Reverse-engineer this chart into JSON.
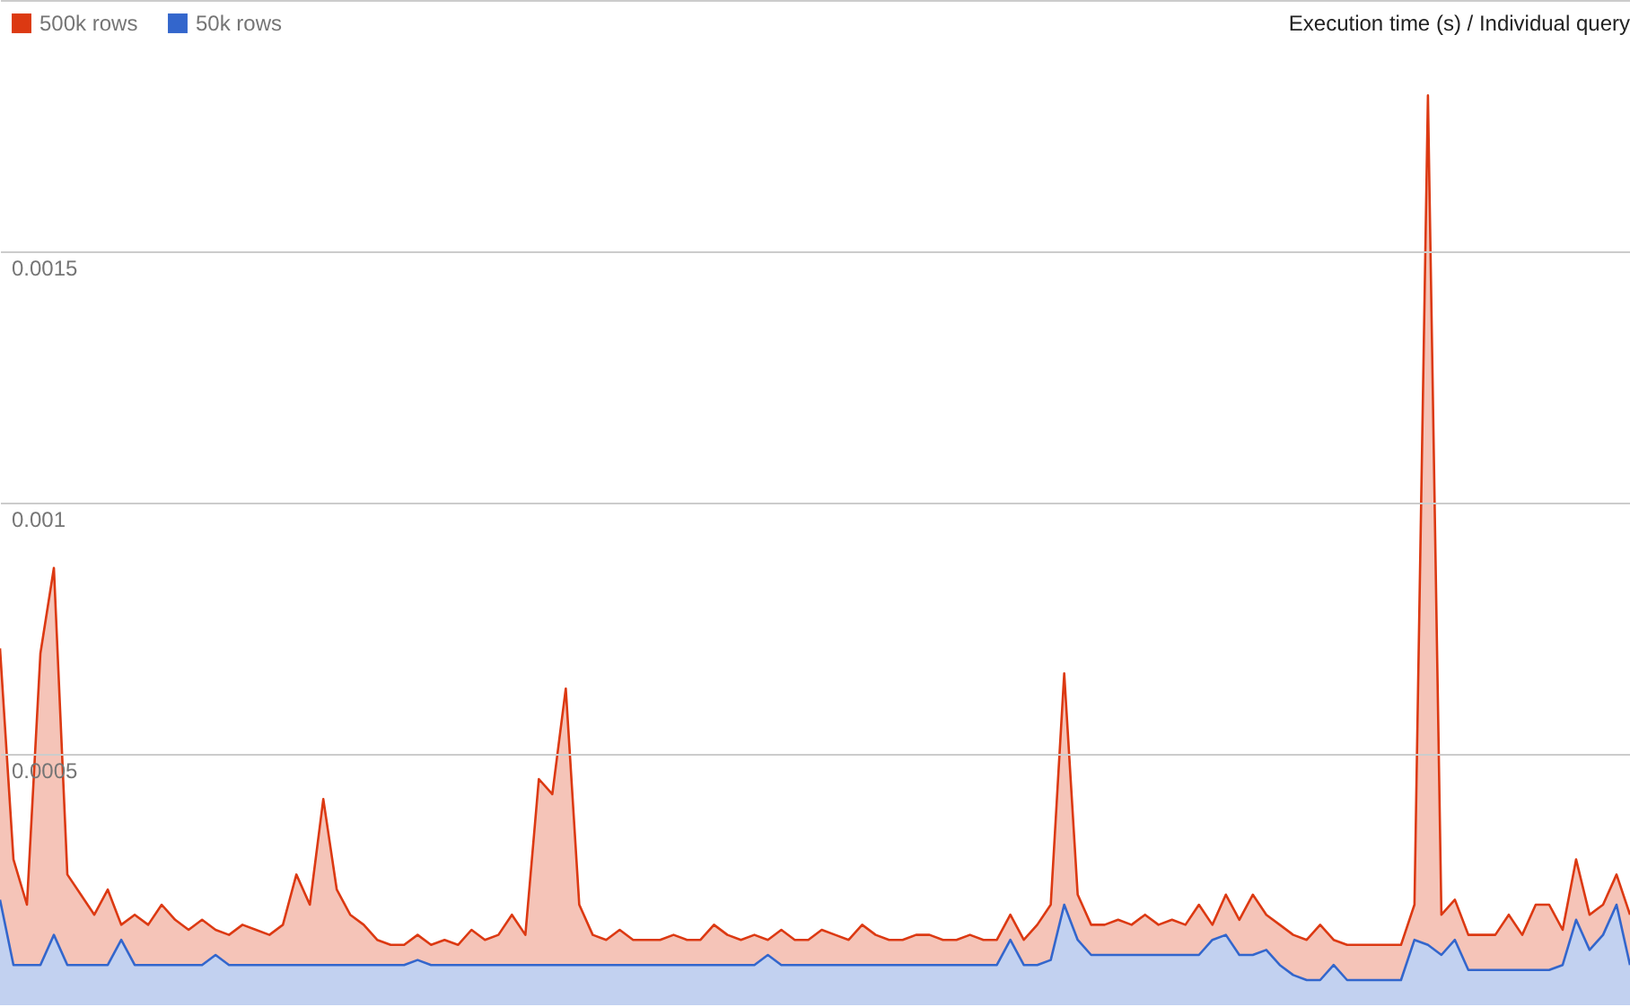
{
  "chart_data": {
    "type": "area",
    "title": "Execution time (s) / Individual query",
    "categories": [
      null,
      null,
      null,
      null,
      null,
      null,
      null,
      null,
      null,
      null,
      null,
      null,
      null,
      null,
      null,
      null,
      null,
      null,
      null,
      null,
      null,
      null,
      null,
      null,
      null,
      null,
      null,
      null,
      null,
      null,
      null,
      null,
      null,
      null,
      null,
      null,
      null,
      null,
      null,
      null,
      null,
      null,
      null,
      null,
      null,
      null,
      null,
      null,
      null,
      null,
      null,
      null,
      null,
      null,
      null,
      null,
      null,
      null,
      null,
      null,
      null,
      null,
      null,
      null,
      null,
      null,
      null,
      null,
      null,
      null,
      null,
      null,
      null,
      null,
      null,
      null,
      null,
      null,
      null,
      null,
      null,
      null,
      null,
      null,
      null,
      null,
      null,
      null,
      null,
      null,
      null,
      null,
      null,
      null,
      null,
      null,
      null,
      null,
      null,
      null,
      null,
      null,
      null,
      null,
      null,
      null,
      null,
      null,
      null,
      null,
      null,
      null,
      null,
      null,
      null,
      null,
      null,
      null,
      null,
      null,
      null,
      null
    ],
    "series": [
      {
        "name": "500k rows",
        "color": "#dc3912",
        "values": [
          0.00071,
          0.00029,
          0.0002,
          0.0007,
          0.00087,
          0.00026,
          0.00022,
          0.00018,
          0.00023,
          0.00016,
          0.00018,
          0.00016,
          0.0002,
          0.00017,
          0.00015,
          0.00017,
          0.00015,
          0.00014,
          0.00016,
          0.00015,
          0.00014,
          0.00016,
          0.00026,
          0.0002,
          0.00041,
          0.00023,
          0.00018,
          0.00016,
          0.00013,
          0.00012,
          0.00012,
          0.00014,
          0.00012,
          0.00013,
          0.00012,
          0.00015,
          0.00013,
          0.00014,
          0.00018,
          0.00014,
          0.00045,
          0.00042,
          0.00063,
          0.0002,
          0.00014,
          0.00013,
          0.00015,
          0.00013,
          0.00013,
          0.00013,
          0.00014,
          0.00013,
          0.00013,
          0.00016,
          0.00014,
          0.00013,
          0.00014,
          0.00013,
          0.00015,
          0.00013,
          0.00013,
          0.00015,
          0.00014,
          0.00013,
          0.00016,
          0.00014,
          0.00013,
          0.00013,
          0.00014,
          0.00014,
          0.00013,
          0.00013,
          0.00014,
          0.00013,
          0.00013,
          0.00018,
          0.00013,
          0.00016,
          0.0002,
          0.00066,
          0.00022,
          0.00016,
          0.00016,
          0.00017,
          0.00016,
          0.00018,
          0.00016,
          0.00017,
          0.00016,
          0.0002,
          0.00016,
          0.00022,
          0.00017,
          0.00022,
          0.00018,
          0.00016,
          0.00014,
          0.00013,
          0.00016,
          0.00013,
          0.00012,
          0.00012,
          0.00012,
          0.00012,
          0.00012,
          0.0002,
          0.00181,
          0.00018,
          0.00021,
          0.00014,
          0.00014,
          0.00014,
          0.00018,
          0.00014,
          0.0002,
          0.0002,
          0.00015,
          0.00029,
          0.00018,
          0.0002,
          0.00026,
          0.00018
        ]
      },
      {
        "name": "50k rows",
        "color": "#3366cc",
        "values": [
          0.00021,
          8e-05,
          8e-05,
          8e-05,
          0.00014,
          8e-05,
          8e-05,
          8e-05,
          8e-05,
          0.00013,
          8e-05,
          8e-05,
          8e-05,
          8e-05,
          8e-05,
          8e-05,
          0.0001,
          8e-05,
          8e-05,
          8e-05,
          8e-05,
          8e-05,
          8e-05,
          8e-05,
          8e-05,
          8e-05,
          8e-05,
          8e-05,
          8e-05,
          8e-05,
          8e-05,
          9e-05,
          8e-05,
          8e-05,
          8e-05,
          8e-05,
          8e-05,
          8e-05,
          8e-05,
          8e-05,
          8e-05,
          8e-05,
          8e-05,
          8e-05,
          8e-05,
          8e-05,
          8e-05,
          8e-05,
          8e-05,
          8e-05,
          8e-05,
          8e-05,
          8e-05,
          8e-05,
          8e-05,
          8e-05,
          8e-05,
          0.0001,
          8e-05,
          8e-05,
          8e-05,
          8e-05,
          8e-05,
          8e-05,
          8e-05,
          8e-05,
          8e-05,
          8e-05,
          8e-05,
          8e-05,
          8e-05,
          8e-05,
          8e-05,
          8e-05,
          8e-05,
          0.00013,
          8e-05,
          8e-05,
          9e-05,
          0.0002,
          0.00013,
          0.0001,
          0.0001,
          0.0001,
          0.0001,
          0.0001,
          0.0001,
          0.0001,
          0.0001,
          0.0001,
          0.00013,
          0.00014,
          0.0001,
          0.0001,
          0.00011,
          8e-05,
          6e-05,
          5e-05,
          5e-05,
          8e-05,
          5e-05,
          5e-05,
          5e-05,
          5e-05,
          5e-05,
          0.00013,
          0.00012,
          0.0001,
          0.00013,
          7e-05,
          7e-05,
          7e-05,
          7e-05,
          7e-05,
          7e-05,
          7e-05,
          8e-05,
          0.00017,
          0.00011,
          0.00014,
          0.0002,
          8e-05
        ]
      }
    ],
    "ylim": [
      0,
      0.002
    ],
    "yticks": [
      {
        "value": 0,
        "label": null
      },
      0.0005,
      0.001,
      0.0015,
      {
        "value": 0.002,
        "label": null
      }
    ],
    "grid": true,
    "legend": "top left"
  }
}
